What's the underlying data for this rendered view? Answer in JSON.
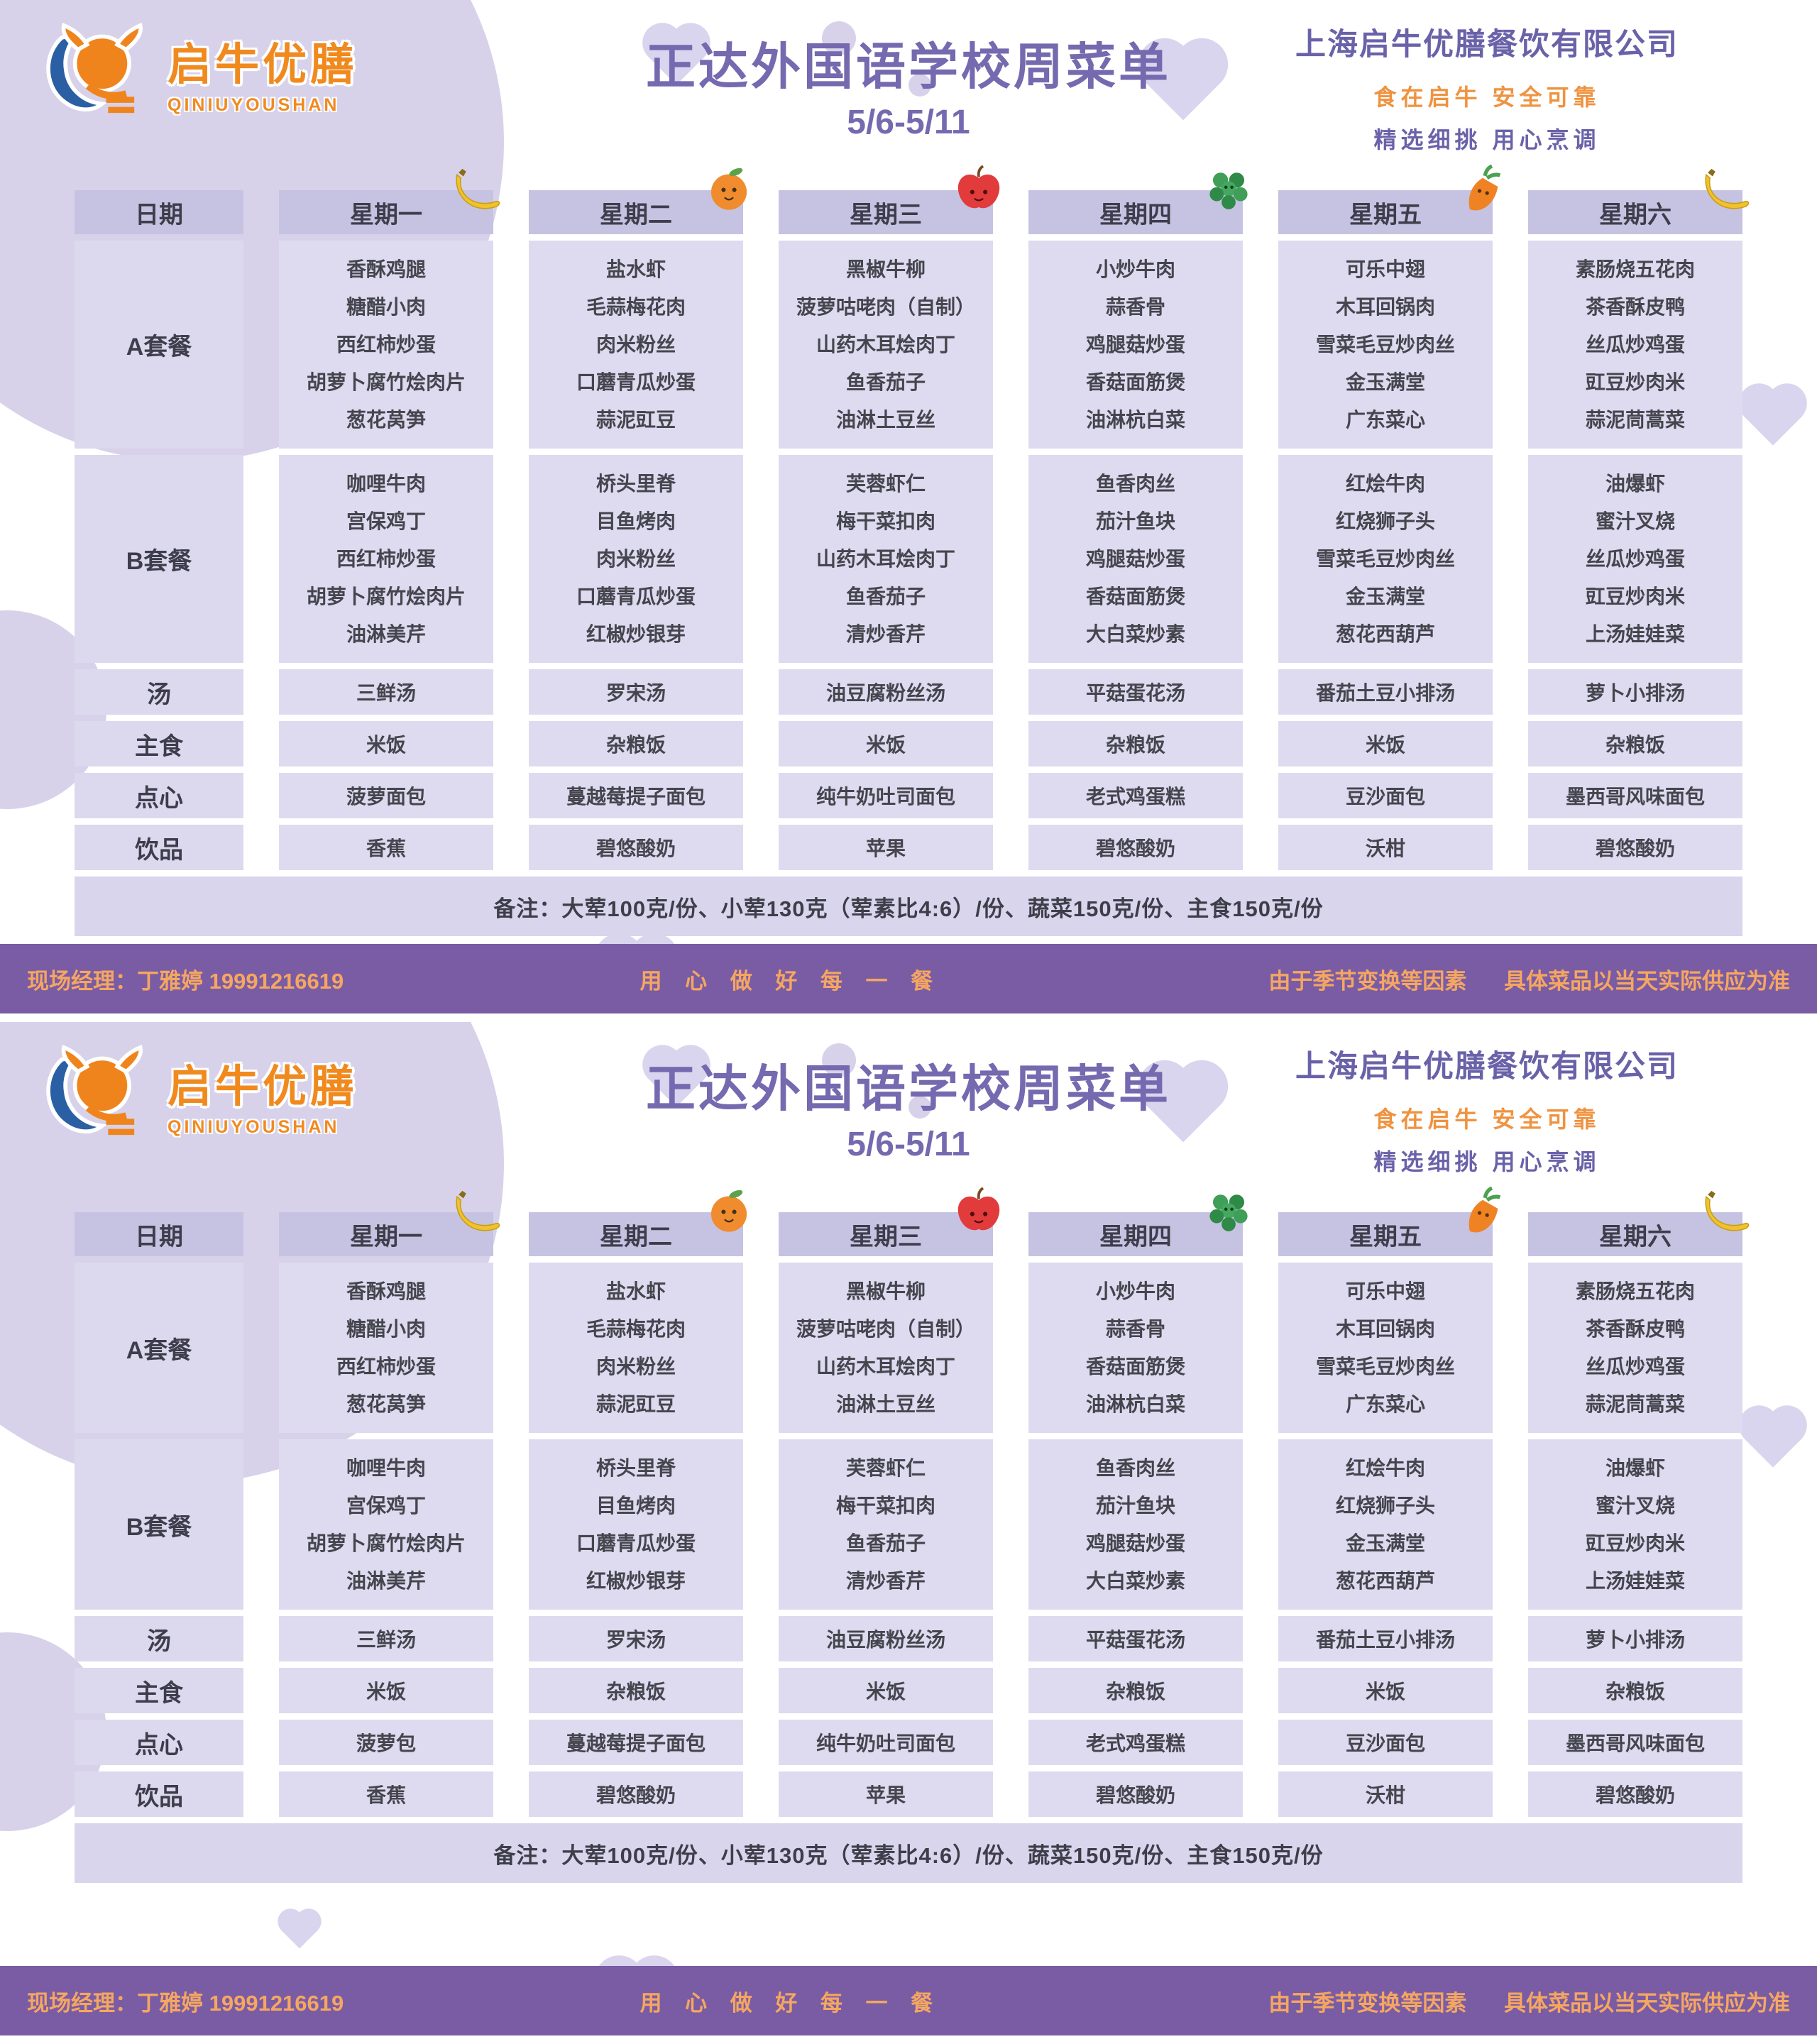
{
  "header": {
    "logo_text": "启牛优膳",
    "logo_sub": "QINIUYOUSHAN",
    "title": "正达外国语学校周菜单",
    "date_range": "5/6-5/11",
    "company": "上海启牛优膳餐饮有限公司",
    "slogan1": "食在启牛  安全可靠",
    "slogan2": "精选细挑  用心烹调"
  },
  "table": {
    "date_label": "日期",
    "days": [
      "星期一",
      "星期二",
      "星期三",
      "星期四",
      "星期五",
      "星期六"
    ],
    "fruits": [
      "banana",
      "orange",
      "apple",
      "grape",
      "carrot",
      "banana"
    ],
    "row_labels": {
      "a": "A套餐",
      "b": "B套餐",
      "soup": "汤",
      "staple": "主食",
      "dessert": "点心",
      "drink": "饮品"
    },
    "note": "备注：大荤100克/份、小荤130克（荤素比4:6）/份、蔬菜150克/份、主食150克/份"
  },
  "footer": {
    "manager": "现场经理：丁雅婷 19991216619",
    "slogan": "用 心 做 好 每 一 餐",
    "disclaimer1": "由于季节变换等因素",
    "disclaimer2": "具体菜品以当天实际供应为准"
  },
  "colors": {
    "accent_purple": "#7569af",
    "deep_purple_bar": "#7a5ca4",
    "orange": "#ef9340",
    "header_cell": "#c6c2e2",
    "body_cell": "#dedbf0"
  },
  "posters": [
    {
      "a": [
        [
          "香酥鸡腿",
          "糖醋小肉",
          "西红柿炒蛋",
          "胡萝卜腐竹烩肉片",
          "葱花莴笋"
        ],
        [
          "盐水虾",
          "毛蒜梅花肉",
          "肉米粉丝",
          "口蘑青瓜炒蛋",
          "蒜泥豇豆"
        ],
        [
          "黑椒牛柳",
          "菠萝咕咾肉（自制）",
          "山药木耳烩肉丁",
          "鱼香茄子",
          "油淋土豆丝"
        ],
        [
          "小炒牛肉",
          "蒜香骨",
          "鸡腿菇炒蛋",
          "香菇面筋煲",
          "油淋杭白菜"
        ],
        [
          "可乐中翅",
          "木耳回锅肉",
          "雪菜毛豆炒肉丝",
          "金玉满堂",
          "广东菜心"
        ],
        [
          "素肠烧五花肉",
          "茶香酥皮鸭",
          "丝瓜炒鸡蛋",
          "豇豆炒肉米",
          "蒜泥茼蒿菜"
        ]
      ],
      "b": [
        [
          "咖哩牛肉",
          "宫保鸡丁",
          "西红柿炒蛋",
          "胡萝卜腐竹烩肉片",
          "油淋美芹"
        ],
        [
          "桥头里脊",
          "目鱼烤肉",
          "肉米粉丝",
          "口蘑青瓜炒蛋",
          "红椒炒银芽"
        ],
        [
          "芙蓉虾仁",
          "梅干菜扣肉",
          "山药木耳烩肉丁",
          "鱼香茄子",
          "清炒香芹"
        ],
        [
          "鱼香肉丝",
          "茄汁鱼块",
          "鸡腿菇炒蛋",
          "香菇面筋煲",
          "大白菜炒素"
        ],
        [
          "红烩牛肉",
          "红烧狮子头",
          "雪菜毛豆炒肉丝",
          "金玉满堂",
          "葱花西葫芦"
        ],
        [
          "油爆虾",
          "蜜汁叉烧",
          "丝瓜炒鸡蛋",
          "豇豆炒肉米",
          "上汤娃娃菜"
        ]
      ],
      "soup": [
        "三鲜汤",
        "罗宋汤",
        "油豆腐粉丝汤",
        "平菇蛋花汤",
        "番茄土豆小排汤",
        "萝卜小排汤"
      ],
      "staple": [
        "米饭",
        "杂粮饭",
        "米饭",
        "杂粮饭",
        "米饭",
        "杂粮饭"
      ],
      "dessert": [
        "菠萝面包",
        "蔓越莓提子面包",
        "纯牛奶吐司面包",
        "老式鸡蛋糕",
        "豆沙面包",
        "墨西哥风味面包"
      ],
      "drink": [
        "香蕉",
        "碧悠酸奶",
        "苹果",
        "碧悠酸奶",
        "沃柑",
        "碧悠酸奶"
      ]
    },
    {
      "a": [
        [
          "香酥鸡腿",
          "糖醋小肉",
          "西红柿炒蛋",
          "葱花莴笋"
        ],
        [
          "盐水虾",
          "毛蒜梅花肉",
          "肉米粉丝",
          "蒜泥豇豆"
        ],
        [
          "黑椒牛柳",
          "菠萝咕咾肉（自制）",
          "山药木耳烩肉丁",
          "油淋土豆丝"
        ],
        [
          "小炒牛肉",
          "蒜香骨",
          "香菇面筋煲",
          "油淋杭白菜"
        ],
        [
          "可乐中翅",
          "木耳回锅肉",
          "雪菜毛豆炒肉丝",
          "广东菜心"
        ],
        [
          "素肠烧五花肉",
          "茶香酥皮鸭",
          "丝瓜炒鸡蛋",
          "蒜泥茼蒿菜"
        ]
      ],
      "b": [
        [
          "咖哩牛肉",
          "宫保鸡丁",
          "胡萝卜腐竹烩肉片",
          "油淋美芹"
        ],
        [
          "桥头里脊",
          "目鱼烤肉",
          "口蘑青瓜炒蛋",
          "红椒炒银芽"
        ],
        [
          "芙蓉虾仁",
          "梅干菜扣肉",
          "鱼香茄子",
          "清炒香芹"
        ],
        [
          "鱼香肉丝",
          "茄汁鱼块",
          "鸡腿菇炒蛋",
          "大白菜炒素"
        ],
        [
          "红烩牛肉",
          "红烧狮子头",
          "金玉满堂",
          "葱花西葫芦"
        ],
        [
          "油爆虾",
          "蜜汁叉烧",
          "豇豆炒肉米",
          "上汤娃娃菜"
        ]
      ],
      "soup": [
        "三鲜汤",
        "罗宋汤",
        "油豆腐粉丝汤",
        "平菇蛋花汤",
        "番茄土豆小排汤",
        "萝卜小排汤"
      ],
      "staple": [
        "米饭",
        "杂粮饭",
        "米饭",
        "杂粮饭",
        "米饭",
        "杂粮饭"
      ],
      "dessert": [
        "菠萝包",
        "蔓越莓提子面包",
        "纯牛奶吐司面包",
        "老式鸡蛋糕",
        "豆沙面包",
        "墨西哥风味面包"
      ],
      "drink": [
        "香蕉",
        "碧悠酸奶",
        "苹果",
        "碧悠酸奶",
        "沃柑",
        "碧悠酸奶"
      ]
    }
  ]
}
